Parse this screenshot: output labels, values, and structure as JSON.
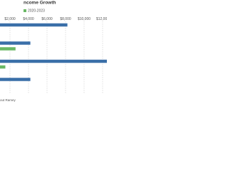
{
  "chart_data": {
    "type": "bar",
    "orientation": "horizontal",
    "title": "ncome Growth",
    "footer": "out Ramey",
    "categories": [
      null,
      null,
      null,
      null
    ],
    "series": [
      {
        "color": "#3a6fa8",
        "values": [
          8200,
          4200,
          13000,
          4200
        ]
      },
      {
        "name": "2020-2023",
        "color": "#6ab865",
        "values": [
          null,
          2600,
          1500,
          null
        ]
      }
    ],
    "xlim": [
      0,
      13000
    ],
    "xticks": [
      {
        "value": 2000,
        "label": "$2,000"
      },
      {
        "value": 4000,
        "label": "$4,000"
      },
      {
        "value": 6000,
        "label": "$6,000"
      },
      {
        "value": 8000,
        "label": "$8,000"
      },
      {
        "value": 10000,
        "label": "$10,000"
      },
      {
        "value": 12000,
        "label": "$12,000"
      }
    ],
    "grid": true
  }
}
